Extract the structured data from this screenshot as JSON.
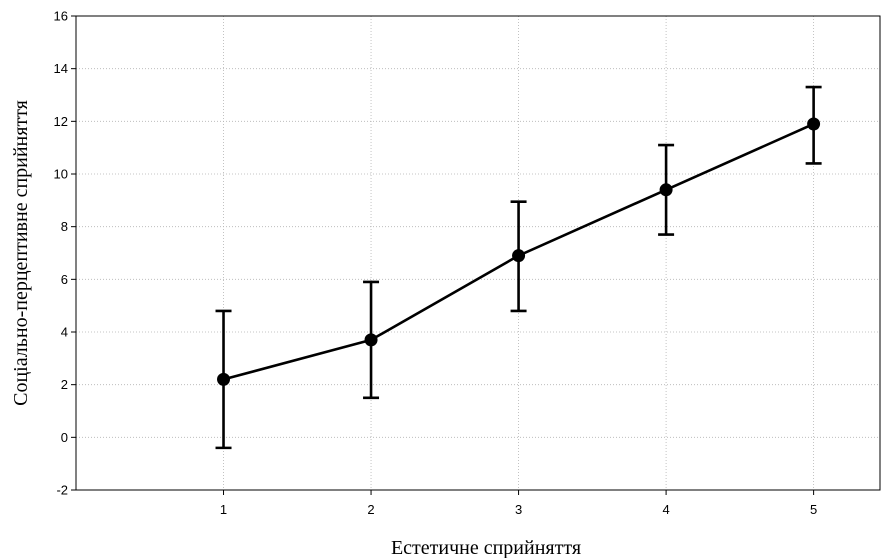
{
  "chart_data": {
    "type": "line",
    "title": "",
    "xlabel": "Естетичне сприйняття",
    "ylabel": "Соціально-перцептивне сприйняття",
    "x": [
      1,
      2,
      3,
      4,
      5
    ],
    "x_tick_labels": [
      "1",
      "2",
      "3",
      "4",
      "5"
    ],
    "xlim": [
      0,
      5.45
    ],
    "ylim": [
      -2,
      16
    ],
    "y_ticks": [
      -2,
      0,
      2,
      4,
      6,
      8,
      10,
      12,
      14,
      16
    ],
    "y_tick_labels": [
      "-2",
      "0",
      "2",
      "4",
      "6",
      "8",
      "10",
      "12",
      "14",
      "16"
    ],
    "grid": true,
    "series": [
      {
        "values": [
          2.2,
          3.7,
          6.9,
          9.4,
          11.9
        ],
        "error_lower": [
          -0.4,
          1.5,
          4.8,
          7.7,
          10.4
        ],
        "error_upper": [
          4.8,
          5.9,
          8.95,
          11.1,
          13.3
        ],
        "color": "#000000"
      }
    ]
  }
}
